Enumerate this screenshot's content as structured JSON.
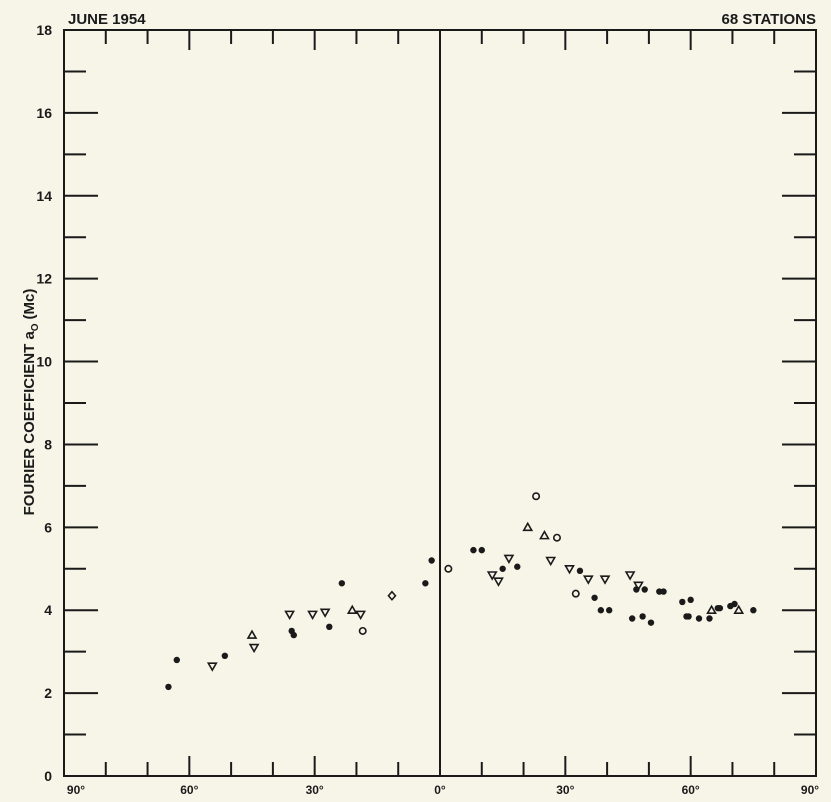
{
  "chart_data": {
    "type": "scatter",
    "title_left": "JUNE 1954",
    "title_right": "68 STATIONS",
    "ylabel": "FOURIER COEFFICIENT a",
    "ylabel_subscript": "O",
    "ylabel_unit": "(Mc)",
    "xlabel": "",
    "xlim": [
      -90,
      90
    ],
    "ylim": [
      0,
      18
    ],
    "grid": false,
    "x_ticks": [
      {
        "value": -90,
        "label": "90°"
      },
      {
        "value": -60,
        "label": "60°"
      },
      {
        "value": -30,
        "label": "30°"
      },
      {
        "value": 0,
        "label": "0°"
      },
      {
        "value": 30,
        "label": "30°"
      },
      {
        "value": 60,
        "label": "60°"
      },
      {
        "value": 90,
        "label": "90°"
      }
    ],
    "y_ticks": [
      {
        "value": 0,
        "label": "0"
      },
      {
        "value": 2,
        "label": "2"
      },
      {
        "value": 4,
        "label": "4"
      },
      {
        "value": 6,
        "label": "6"
      },
      {
        "value": 8,
        "label": "8"
      },
      {
        "value": 10,
        "label": "10"
      },
      {
        "value": 12,
        "label": "12"
      },
      {
        "value": 14,
        "label": "14"
      },
      {
        "value": 16,
        "label": "16"
      },
      {
        "value": 18,
        "label": "18"
      }
    ],
    "points": [
      {
        "x": -65,
        "y": 2.15,
        "m": "fill"
      },
      {
        "x": -63,
        "y": 2.8,
        "m": "fill"
      },
      {
        "x": -54.5,
        "y": 2.65,
        "m": "tri-down"
      },
      {
        "x": -51.5,
        "y": 2.9,
        "m": "fill"
      },
      {
        "x": -45,
        "y": 3.4,
        "m": "tri-up"
      },
      {
        "x": -44.5,
        "y": 3.1,
        "m": "tri-down"
      },
      {
        "x": -36,
        "y": 3.9,
        "m": "tri-down"
      },
      {
        "x": -35.5,
        "y": 3.5,
        "m": "fill"
      },
      {
        "x": -35,
        "y": 3.4,
        "m": "fill"
      },
      {
        "x": -30.5,
        "y": 3.9,
        "m": "tri-down"
      },
      {
        "x": -27.5,
        "y": 3.95,
        "m": "tri-down"
      },
      {
        "x": -26.5,
        "y": 3.6,
        "m": "fill"
      },
      {
        "x": -23.5,
        "y": 4.65,
        "m": "fill"
      },
      {
        "x": -21,
        "y": 4.0,
        "m": "tri-up"
      },
      {
        "x": -19,
        "y": 3.9,
        "m": "tri-down"
      },
      {
        "x": -18.5,
        "y": 3.5,
        "m": "circle"
      },
      {
        "x": -11.5,
        "y": 4.35,
        "m": "diamond"
      },
      {
        "x": -3.5,
        "y": 4.65,
        "m": "fill"
      },
      {
        "x": -2,
        "y": 5.2,
        "m": "fill"
      },
      {
        "x": 2,
        "y": 5.0,
        "m": "circle"
      },
      {
        "x": 8,
        "y": 5.45,
        "m": "fill"
      },
      {
        "x": 10,
        "y": 5.45,
        "m": "fill"
      },
      {
        "x": 12.5,
        "y": 4.85,
        "m": "tri-down"
      },
      {
        "x": 14,
        "y": 4.7,
        "m": "tri-down"
      },
      {
        "x": 15,
        "y": 5.0,
        "m": "fill"
      },
      {
        "x": 16.5,
        "y": 5.25,
        "m": "tri-down"
      },
      {
        "x": 18.5,
        "y": 5.05,
        "m": "fill"
      },
      {
        "x": 21,
        "y": 6.0,
        "m": "tri-up"
      },
      {
        "x": 23,
        "y": 6.75,
        "m": "circle"
      },
      {
        "x": 25,
        "y": 5.8,
        "m": "tri-up"
      },
      {
        "x": 26.5,
        "y": 5.2,
        "m": "tri-down"
      },
      {
        "x": 28,
        "y": 5.75,
        "m": "circle"
      },
      {
        "x": 31,
        "y": 5.0,
        "m": "tri-down"
      },
      {
        "x": 32.5,
        "y": 4.4,
        "m": "circle"
      },
      {
        "x": 33.5,
        "y": 4.95,
        "m": "fill"
      },
      {
        "x": 35.5,
        "y": 4.75,
        "m": "tri-down"
      },
      {
        "x": 37,
        "y": 4.3,
        "m": "fill"
      },
      {
        "x": 38.5,
        "y": 4.0,
        "m": "fill"
      },
      {
        "x": 39.5,
        "y": 4.75,
        "m": "tri-down"
      },
      {
        "x": 40.5,
        "y": 4.0,
        "m": "fill"
      },
      {
        "x": 45.5,
        "y": 4.85,
        "m": "tri-down"
      },
      {
        "x": 46,
        "y": 3.8,
        "m": "fill"
      },
      {
        "x": 47,
        "y": 4.5,
        "m": "fill"
      },
      {
        "x": 47.5,
        "y": 4.6,
        "m": "tri-down"
      },
      {
        "x": 48.5,
        "y": 3.85,
        "m": "fill"
      },
      {
        "x": 49,
        "y": 4.5,
        "m": "fill"
      },
      {
        "x": 50.5,
        "y": 3.7,
        "m": "fill"
      },
      {
        "x": 52.5,
        "y": 4.45,
        "m": "fill"
      },
      {
        "x": 53.5,
        "y": 4.45,
        "m": "fill"
      },
      {
        "x": 58,
        "y": 4.2,
        "m": "fill"
      },
      {
        "x": 59,
        "y": 3.85,
        "m": "fill"
      },
      {
        "x": 59.5,
        "y": 3.85,
        "m": "fill"
      },
      {
        "x": 60,
        "y": 4.25,
        "m": "fill"
      },
      {
        "x": 62,
        "y": 3.8,
        "m": "fill"
      },
      {
        "x": 64.5,
        "y": 3.8,
        "m": "fill"
      },
      {
        "x": 65,
        "y": 4.0,
        "m": "tri-up"
      },
      {
        "x": 66.5,
        "y": 4.05,
        "m": "fill"
      },
      {
        "x": 67,
        "y": 4.05,
        "m": "fill"
      },
      {
        "x": 69.5,
        "y": 4.1,
        "m": "fill"
      },
      {
        "x": 70.5,
        "y": 4.15,
        "m": "fill"
      },
      {
        "x": 71.5,
        "y": 4.0,
        "m": "tri-up"
      },
      {
        "x": 75,
        "y": 4.0,
        "m": "fill"
      }
    ],
    "colors": {
      "ink": "#1a1a1a",
      "background": "#f7f5e8"
    }
  }
}
